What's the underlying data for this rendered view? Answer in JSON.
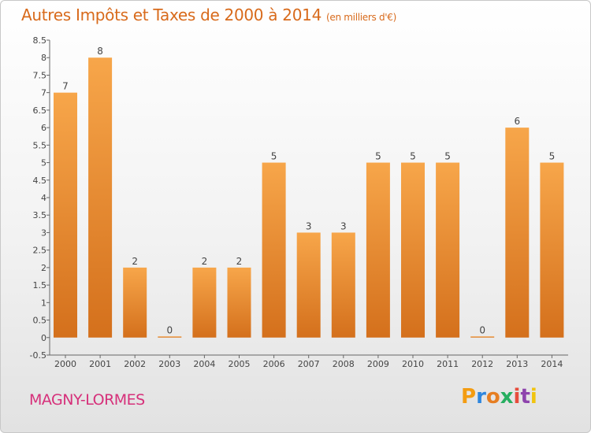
{
  "chart_data": {
    "type": "bar",
    "title": "Autres Impôts et Taxes de 2000 à 2014",
    "subtitle": "(en milliers d'€)",
    "categories": [
      "2000",
      "2001",
      "2002",
      "2003",
      "2004",
      "2005",
      "2006",
      "2007",
      "2008",
      "2009",
      "2010",
      "2011",
      "2012",
      "2013",
      "2014"
    ],
    "values": [
      7,
      8,
      2,
      0,
      2,
      2,
      5,
      3,
      3,
      5,
      5,
      5,
      0,
      6,
      5
    ],
    "data_labels": [
      "7",
      "8",
      "2",
      "0",
      "2",
      "2",
      "5",
      "3",
      "3",
      "5",
      "5",
      "5",
      "0",
      "6",
      "5"
    ],
    "y_ticks": [
      "8.5",
      "8",
      "7.5",
      "7",
      "6.5",
      "6",
      "5.5",
      "5",
      "4.5",
      "4",
      "3.5",
      "3",
      "2.5",
      "2",
      "1.5",
      "1",
      "0.5",
      "0",
      "-0.5"
    ],
    "ylim": [
      -0.5,
      8.5
    ],
    "grid": false,
    "colors": {
      "bar_light": "#f7a64a",
      "bar_dark": "#d4701c",
      "axis": "#666666",
      "text": "#444444"
    }
  },
  "footer": {
    "commune": "MAGNY-LORMES"
  },
  "logo": {
    "letters": [
      "P",
      "r",
      "o",
      "x",
      "i",
      "t",
      "i"
    ],
    "colors": [
      "#f39c12",
      "#2e86de",
      "#e67e22",
      "#27ae60",
      "#e74c3c",
      "#8e44ad",
      "#f1c40f"
    ]
  },
  "colors": {
    "title": "#d86a1b",
    "commune": "#d6307a"
  }
}
